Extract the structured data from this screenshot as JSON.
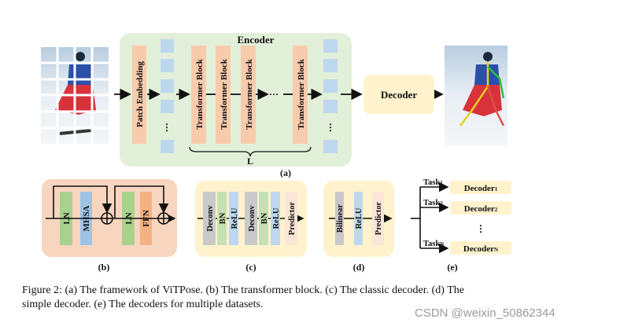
{
  "figure": {
    "a": {
      "encoder_title": "Encoder",
      "patch_embedding": "Patch Embedding",
      "transformer_block": "Transformer Block",
      "ellipsis": "···",
      "vertical_ellipsis": "⋮",
      "brace_label": "L",
      "decoder": "Decoder",
      "label": "(a)"
    },
    "b": {
      "ln1": "LN",
      "mhsa": "MHSA",
      "ln2": "LN",
      "ffn": "FFN",
      "label": "(b)"
    },
    "c": {
      "deconv1": "Deconv",
      "bn1": "BN",
      "relu1": "ReLU",
      "deconv2": "Deconv",
      "bn2": "BN",
      "relu2": "ReLU",
      "predictor": "Predictor",
      "label": "(c)"
    },
    "d": {
      "bilinear": "Bilinear",
      "relu": "ReLU",
      "predictor": "Predictor",
      "label": "(d)"
    },
    "e": {
      "tasks": [
        {
          "task": "Task",
          "task_sub": "1",
          "decoder": "Decoder",
          "decoder_sub": "1"
        },
        {
          "task": "Task",
          "task_sub": "2",
          "decoder": "Decoder",
          "decoder_sub": "2"
        },
        {
          "task": "Task",
          "task_sub": "N",
          "decoder": "Decoder",
          "decoder_sub": "N"
        }
      ],
      "ellipsis": "⋮",
      "label": "(e)"
    },
    "colors": {
      "encoder_bg": "#e2f0d9",
      "patch_block": "#f8cbad",
      "token": "#bdd7ee",
      "decoder_bg": "#fff2cc",
      "block_b_bg": "#f8d5bf",
      "ln": "#a9d18e",
      "ffn": "#f4b183",
      "deconv": "#c9c9c9",
      "predictor": "#fbe5d6"
    }
  },
  "caption": {
    "line1": "Figure 2: (a) The framework of ViTPose. (b) The transformer block. (c) The classic decoder. (d) The",
    "line2": "simple decoder. (e) The decoders for multiple datasets."
  },
  "watermark": "CSDN @weixin_50862344"
}
